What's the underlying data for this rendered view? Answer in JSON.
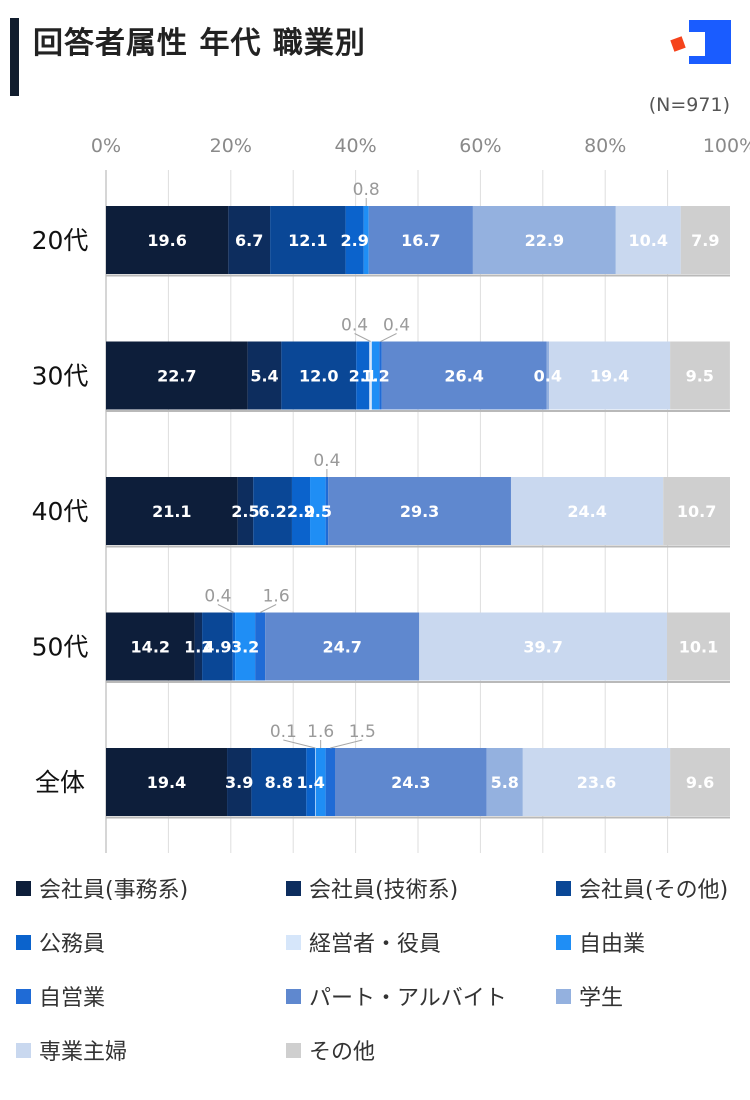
{
  "header": {
    "title": "回答者属性 年代 職業別",
    "n_label": "(N=971)",
    "logo_colors": {
      "square": "#1a5cff",
      "dot": "#f5431c"
    }
  },
  "chart_data": {
    "type": "bar",
    "orientation": "horizontal",
    "stacked": true,
    "xlim": [
      0,
      100
    ],
    "x_ticks": [
      "0%",
      "20%",
      "40%",
      "60%",
      "80%",
      "100%"
    ],
    "grid": true,
    "legend_position": "bottom",
    "categories": [
      "20代",
      "30代",
      "40代",
      "50代",
      "全体"
    ],
    "series": [
      {
        "name": "会社員(事務系)",
        "color": "#0d1e3a",
        "values": [
          19.6,
          22.7,
          21.1,
          14.2,
          19.4
        ]
      },
      {
        "name": "会社員(技術系)",
        "color": "#0d2d5e",
        "values": [
          6.7,
          5.4,
          2.5,
          1.2,
          3.9
        ]
      },
      {
        "name": "会社員(その他)",
        "color": "#0a4796",
        "values": [
          12.1,
          12.0,
          6.2,
          4.9,
          8.8
        ]
      },
      {
        "name": "公務員",
        "color": "#0b63cc",
        "values": [
          2.9,
          2.1,
          2.9,
          0.4,
          1.4
        ]
      },
      {
        "name": "経営者・役員",
        "color": "#d6e6fa",
        "values": [
          0.0,
          0.4,
          0.0,
          0.0,
          0.1
        ]
      },
      {
        "name": "自由業",
        "color": "#1f8ef5",
        "values": [
          0.8,
          1.2,
          2.5,
          3.2,
          1.6
        ]
      },
      {
        "name": "自営業",
        "color": "#1f6bd6",
        "values": [
          0.0,
          0.4,
          0.4,
          1.6,
          1.5
        ]
      },
      {
        "name": "パート・アルバイト",
        "color": "#5f88cf",
        "values": [
          16.7,
          26.4,
          29.3,
          24.7,
          24.3
        ]
      },
      {
        "name": "学生",
        "color": "#94b1df",
        "values": [
          22.9,
          0.4,
          0.0,
          0.0,
          5.8
        ]
      },
      {
        "name": "専業主婦",
        "color": "#c9d8ef",
        "values": [
          10.4,
          19.4,
          24.4,
          39.7,
          23.6
        ]
      },
      {
        "name": "その他",
        "color": "#cfcfcf",
        "values": [
          7.9,
          9.5,
          10.7,
          10.1,
          9.6
        ]
      }
    ],
    "inside_labels": [
      [
        {
          "s": 0,
          "t": "19.6"
        },
        {
          "s": 1,
          "t": "6.7"
        },
        {
          "s": 2,
          "t": "12.1"
        },
        {
          "s": 3,
          "t": "2.9"
        },
        {
          "s": 7,
          "t": "16.7"
        },
        {
          "s": 8,
          "t": "22.9"
        },
        {
          "s": 9,
          "t": "10.4"
        },
        {
          "s": 10,
          "t": "7.9"
        }
      ],
      [
        {
          "s": 0,
          "t": "22.7"
        },
        {
          "s": 1,
          "t": "5.4"
        },
        {
          "s": 2,
          "t": "12.0"
        },
        {
          "s": 3,
          "t": "2.1"
        },
        {
          "s": 5,
          "t": "1.2"
        },
        {
          "s": 7,
          "t": "26.4"
        },
        {
          "s": 8,
          "t": "0.4"
        },
        {
          "s": 9,
          "t": "19.4"
        },
        {
          "s": 10,
          "t": "9.5"
        }
      ],
      [
        {
          "s": 0,
          "t": "21.1"
        },
        {
          "s": 1,
          "t": "2.5"
        },
        {
          "s": 2,
          "t": "6.2"
        },
        {
          "s": 3,
          "t": "2.9"
        },
        {
          "s": 5,
          "t": "2.5"
        },
        {
          "s": 7,
          "t": "29.3"
        },
        {
          "s": 9,
          "t": "24.4"
        },
        {
          "s": 10,
          "t": "10.7"
        }
      ],
      [
        {
          "s": 0,
          "t": "14.2"
        },
        {
          "s": 1,
          "t": "1.2"
        },
        {
          "s": 2,
          "t": "4.9"
        },
        {
          "s": 5,
          "t": "3.2"
        },
        {
          "s": 7,
          "t": "24.7"
        },
        {
          "s": 9,
          "t": "39.7"
        },
        {
          "s": 10,
          "t": "10.1"
        }
      ],
      [
        {
          "s": 0,
          "t": "19.4"
        },
        {
          "s": 1,
          "t": "3.9"
        },
        {
          "s": 2,
          "t": "8.8"
        },
        {
          "s": 3,
          "t": "1.4"
        },
        {
          "s": 7,
          "t": "24.3"
        },
        {
          "s": 8,
          "t": "5.8"
        },
        {
          "s": 9,
          "t": "23.6"
        },
        {
          "s": 10,
          "t": "9.6"
        }
      ]
    ],
    "callout_labels": [
      [
        {
          "s": 5,
          "t": "0.8"
        }
      ],
      [
        {
          "s": 4,
          "t": "0.4"
        },
        {
          "s": 6,
          "t": "0.4"
        }
      ],
      [
        {
          "s": 6,
          "t": "0.4"
        }
      ],
      [
        {
          "s": 3,
          "t": "0.4"
        },
        {
          "s": 6,
          "t": "1.6"
        }
      ],
      [
        {
          "s": 4,
          "t": "0.1"
        },
        {
          "s": 5,
          "t": "1.6"
        },
        {
          "s": 6,
          "t": "1.5"
        }
      ]
    ]
  }
}
